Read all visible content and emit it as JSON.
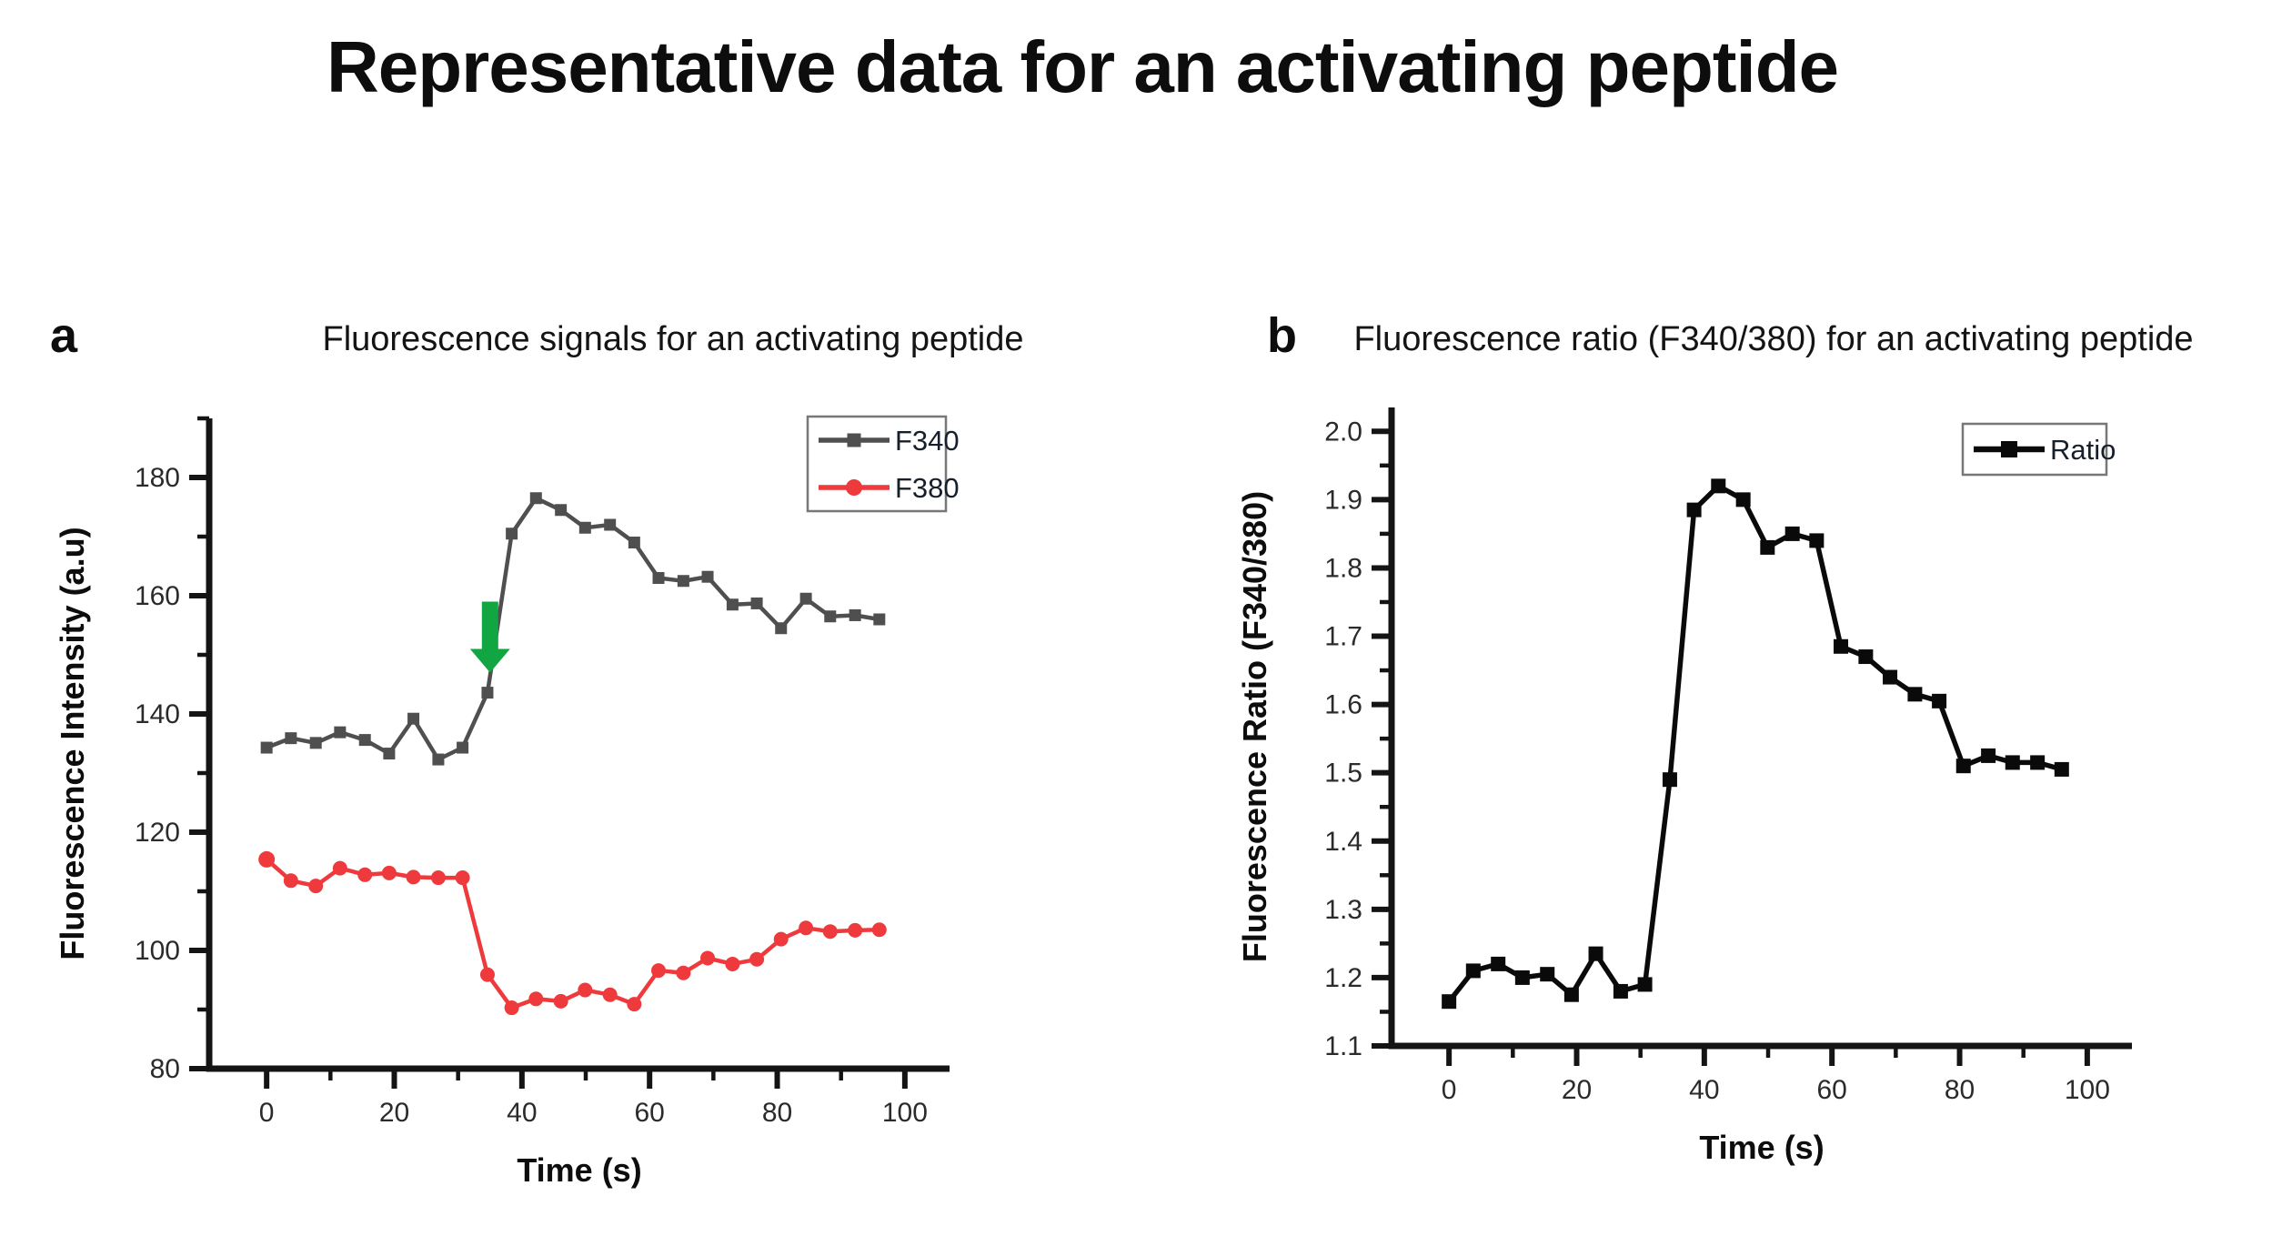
{
  "title": "Representative data for an activating peptide",
  "chart_data": [
    {
      "type": "line",
      "panel_label": "a",
      "title": "Fluorescence signals for an activating peptide",
      "xlabel": "Time (s)",
      "ylabel": "Fluorescence Intensity (a.u)",
      "xlim": [
        -9,
        107
      ],
      "ylim": [
        80,
        190
      ],
      "xticks": [
        0,
        20,
        40,
        60,
        80,
        100
      ],
      "xtick_labels": [
        "0",
        "20",
        "40",
        "60",
        "80",
        "100"
      ],
      "xminor": [
        10,
        30,
        50,
        70,
        90
      ],
      "yticks": [
        80,
        100,
        120,
        140,
        160,
        180
      ],
      "ytick_labels": [
        "80",
        "100",
        "120",
        "140",
        "160",
        "180"
      ],
      "yminor": [
        90,
        110,
        130,
        150,
        170,
        190
      ],
      "legend_position": "top-right",
      "grid": false,
      "x": [
        0,
        3.8,
        7.7,
        11.5,
        15.4,
        19.2,
        23,
        26.9,
        30.7,
        34.6,
        38.4,
        42.2,
        46.1,
        49.9,
        53.8,
        57.6,
        61.4,
        65.3,
        69.1,
        73,
        76.8,
        80.6,
        84.5,
        88.3,
        92.2,
        96
      ],
      "series": [
        {
          "name": "F340",
          "color": "#4f4f4f",
          "marker": "square",
          "values": [
            134.3,
            135.9,
            135.1,
            136.9,
            135.6,
            133.3,
            139.2,
            132.3,
            134.3,
            143.6,
            170.5,
            176.5,
            174.5,
            171.5,
            172,
            169,
            163,
            162.5,
            163.2,
            158.5,
            158.7,
            154.5,
            159.5,
            156.5,
            156.7,
            156
          ]
        },
        {
          "name": "F380",
          "color": "#ee3a3c",
          "marker": "circle",
          "values": [
            115.4,
            111.8,
            110.9,
            113.9,
            112.8,
            113.1,
            112.4,
            112.3,
            112.3,
            95.9,
            90.3,
            91.8,
            91.4,
            93.3,
            92.5,
            90.9,
            96.6,
            96.2,
            98.7,
            97.7,
            98.5,
            101.9,
            103.8,
            103.2,
            103.4,
            103.5
          ]
        }
      ],
      "annotation": {
        "name": "stimulus-arrow",
        "shape": "arrow-down",
        "color": "#12a643",
        "x": 35,
        "y_top": 159,
        "y_bottom": 147
      }
    },
    {
      "type": "line",
      "panel_label": "b",
      "title": "Fluorescence ratio (F340/380) for an activating peptide",
      "xlabel": "Time (s)",
      "ylabel": "Fluorescence Ratio (F340/380)",
      "xlim": [
        -9,
        107
      ],
      "ylim": [
        1.1,
        2.035
      ],
      "xticks": [
        0,
        20,
        40,
        60,
        80,
        100
      ],
      "xtick_labels": [
        "0",
        "20",
        "40",
        "60",
        "80",
        "100"
      ],
      "xminor": [
        10,
        30,
        50,
        70,
        90
      ],
      "yticks": [
        1.1,
        1.2,
        1.3,
        1.4,
        1.5,
        1.6,
        1.7,
        1.8,
        1.9,
        2.0
      ],
      "ytick_labels": [
        "1.1",
        "1.2",
        "1.3",
        "1.4",
        "1.5",
        "1.6",
        "1.7",
        "1.8",
        "1.9",
        "2.0"
      ],
      "yminor": [
        1.15,
        1.25,
        1.35,
        1.45,
        1.55,
        1.65,
        1.75,
        1.85,
        1.95
      ],
      "legend_position": "top-right",
      "grid": false,
      "x": [
        0,
        3.8,
        7.7,
        11.5,
        15.4,
        19.2,
        23,
        26.9,
        30.7,
        34.6,
        38.4,
        42.2,
        46.1,
        49.9,
        53.8,
        57.6,
        61.4,
        65.3,
        69.1,
        73,
        76.8,
        80.6,
        84.5,
        88.3,
        92.2,
        96
      ],
      "series": [
        {
          "name": "Ratio",
          "color": "#0a0a0a",
          "marker": "square",
          "values": [
            1.165,
            1.21,
            1.22,
            1.2,
            1.205,
            1.175,
            1.235,
            1.18,
            1.19,
            1.49,
            1.885,
            1.92,
            1.9,
            1.83,
            1.85,
            1.84,
            1.685,
            1.67,
            1.64,
            1.615,
            1.605,
            1.51,
            1.525,
            1.515,
            1.515,
            1.505
          ]
        }
      ]
    }
  ]
}
